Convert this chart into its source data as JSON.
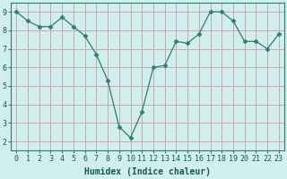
{
  "x": [
    0,
    1,
    2,
    3,
    4,
    5,
    6,
    7,
    8,
    9,
    10,
    11,
    12,
    13,
    14,
    15,
    16,
    17,
    18,
    19,
    20,
    21,
    22,
    23
  ],
  "y": [
    9.0,
    8.5,
    8.2,
    8.2,
    8.7,
    8.2,
    7.7,
    6.7,
    5.3,
    2.8,
    2.2,
    3.6,
    6.0,
    6.1,
    7.4,
    7.3,
    7.8,
    9.0,
    9.0,
    8.5,
    7.4,
    7.4,
    7.0,
    7.8
  ],
  "line_color": "#2e7d6e",
  "marker": "D",
  "marker_size": 2.5,
  "background_color": "#d0eeee",
  "grid_color": "#c8a8a8",
  "xlabel": "Humidex (Indice chaleur)",
  "xlabel_fontsize": 7,
  "tick_fontsize": 6,
  "xlim": [
    -0.5,
    23.5
  ],
  "ylim": [
    1.5,
    9.5
  ],
  "yticks": [
    2,
    3,
    4,
    5,
    6,
    7,
    8,
    9
  ],
  "xticks": [
    0,
    1,
    2,
    3,
    4,
    5,
    6,
    7,
    8,
    9,
    10,
    11,
    12,
    13,
    14,
    15,
    16,
    17,
    18,
    19,
    20,
    21,
    22,
    23
  ]
}
